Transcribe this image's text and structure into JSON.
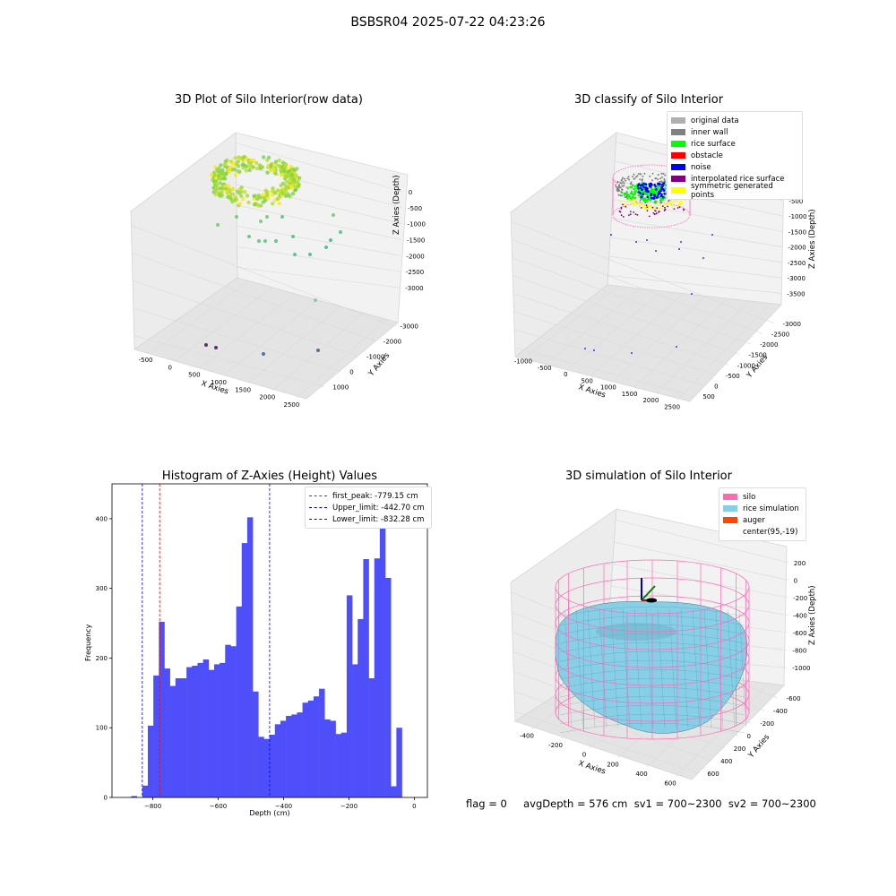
{
  "figure": {
    "suptitle": "BSBSR04 2025-07-22 04:23:26",
    "footer": "flag = 0     avgDepth = 576 cm  sv1 = 700~2300  sv2 = 700~2300"
  },
  "colors": {
    "histogram_bar": "#4f4ff9",
    "peak_line": "#ff0000",
    "limit_line": "#0000ff",
    "silo": "#ff69b4",
    "rice_simulation": "#87cfe6",
    "auger": "#ff4500",
    "pane": "#f2f2f2"
  },
  "chart_data": [
    {
      "type": "scatter",
      "title": "3D Plot of Silo Interior(row data)",
      "xlabel": "X Axies",
      "ylabel": "Y Axies",
      "zlabel": "Z Axies (Depth)",
      "x_ticks": [
        "-500",
        "0",
        "500",
        "1000",
        "1500",
        "2000",
        "2500"
      ],
      "y_ticks": [
        "1000",
        "0",
        "-1000",
        "-2000",
        "-3000"
      ],
      "z_ticks": [
        "0",
        "-500",
        "-1000",
        "-1500",
        "-2000",
        "-2500",
        "-3000"
      ],
      "points_desc": "dense ring of points near top colored yellow-green (viridis); sparse points below",
      "grid": true
    },
    {
      "type": "scatter",
      "title": "3D classify of Silo Interior",
      "xlabel": "X Axies",
      "ylabel": "Y Axies",
      "zlabel": "Z Axies (Depth)",
      "x_ticks": [
        "-1000",
        "-500",
        "0",
        "500",
        "1000",
        "1500",
        "2000",
        "2500"
      ],
      "y_ticks": [
        "500",
        "0",
        "-500",
        "-1000",
        "-1500",
        "-2000",
        "-2500",
        "-3000"
      ],
      "z_ticks": [
        "0",
        "-500",
        "-1000",
        "-1500",
        "-2000",
        "-2500",
        "-3000",
        "-3500"
      ],
      "legend": [
        {
          "label": "original data",
          "color": "#b0b0b0"
        },
        {
          "label": "inner wall",
          "color": "#808080"
        },
        {
          "label": "rice surface",
          "color": "#00ff00"
        },
        {
          "label": "obstacle",
          "color": "#ff0000"
        },
        {
          "label": "noise",
          "color": "#0000ff"
        },
        {
          "label": "interpolated rice surface",
          "color": "#800080"
        },
        {
          "label": "symmetric generated points",
          "color": "#ffff00"
        }
      ],
      "legend_loc": "upper right",
      "grid": true
    },
    {
      "type": "bar",
      "title": "Histogram of Z-Axies (Height) Values",
      "xlabel": "Depth (cm)",
      "ylabel": "Frequency",
      "xlim": [
        -925,
        40
      ],
      "ylim": [
        0,
        450
      ],
      "x_ticks": [
        -800,
        -600,
        -400,
        -200,
        0
      ],
      "x_tick_labels": [
        "−800",
        "−600",
        "−400",
        "−200",
        "0"
      ],
      "y_ticks": [
        0,
        100,
        200,
        300,
        400
      ],
      "bin_width": 16.9,
      "bin_starts": [
        -866,
        -849,
        -832.28,
        -815.4,
        -798.5,
        -781.6,
        -764.7,
        -747.8,
        -730.9,
        -714,
        -697.1,
        -680.2,
        -663.3,
        -646.4,
        -629.5,
        -612.6,
        -595.7,
        -578.8,
        -561.9,
        -545,
        -528.1,
        -511.2,
        -494.3,
        -477.4,
        -460.5,
        -443.6,
        -426.7,
        -409.8,
        -392.9,
        -376,
        -359.1,
        -342.2,
        -325.3,
        -308.4,
        -291.5,
        -274.6,
        -257.7,
        -240.8,
        -223.9,
        -207,
        -190.1,
        -173.2,
        -156.3,
        -139.4,
        -122.5,
        -105.6,
        -88.7,
        -71.8,
        -54.9,
        -38,
        -21.1,
        -4.2
      ],
      "values": [
        2,
        0,
        17,
        103,
        175,
        252,
        185,
        160,
        171,
        171,
        187,
        189,
        193,
        198,
        183,
        191,
        193,
        219,
        217,
        274,
        365,
        402,
        152,
        87,
        84,
        90,
        105,
        110,
        117,
        119,
        122,
        136,
        139,
        145,
        156,
        112,
        110,
        91,
        93,
        290,
        191,
        256,
        342,
        171,
        343,
        425,
        315,
        16,
        100,
        0,
        0,
        0
      ],
      "reference_lines": [
        {
          "name": "first_peak",
          "value": -779.15,
          "label": "first_peak: -779.15 cm"
        },
        {
          "name": "Upper_limit",
          "value": -442.7,
          "label": "Upper_limit: -442.70 cm"
        },
        {
          "name": "Lower_limit",
          "value": -832.28,
          "label": "Lower_limit: -832.28 cm"
        }
      ],
      "legend_loc": "upper right"
    },
    {
      "type": "surface",
      "title": "3D simulation of Silo Interior",
      "xlabel": "X Axies",
      "ylabel": "Y Axies",
      "zlabel": "Z Axies (Depth)",
      "x_ticks": [
        "-400",
        "-200",
        "0",
        "200",
        "400",
        "600"
      ],
      "y_ticks": [
        "600",
        "400",
        "200",
        "0",
        "-200",
        "-400",
        "-600"
      ],
      "z_ticks": [
        "200",
        "0",
        "-200",
        "-400",
        "-600",
        "-800",
        "-1000"
      ],
      "legend": [
        {
          "label": "silo",
          "color": "#ff69b4"
        },
        {
          "label": "rice simulation",
          "color": "#87cfe6"
        },
        {
          "label": "auger",
          "color": "#ff4500"
        },
        {
          "label": "center(95,-19)",
          "color": ""
        }
      ],
      "legend_loc": "upper right"
    }
  ]
}
